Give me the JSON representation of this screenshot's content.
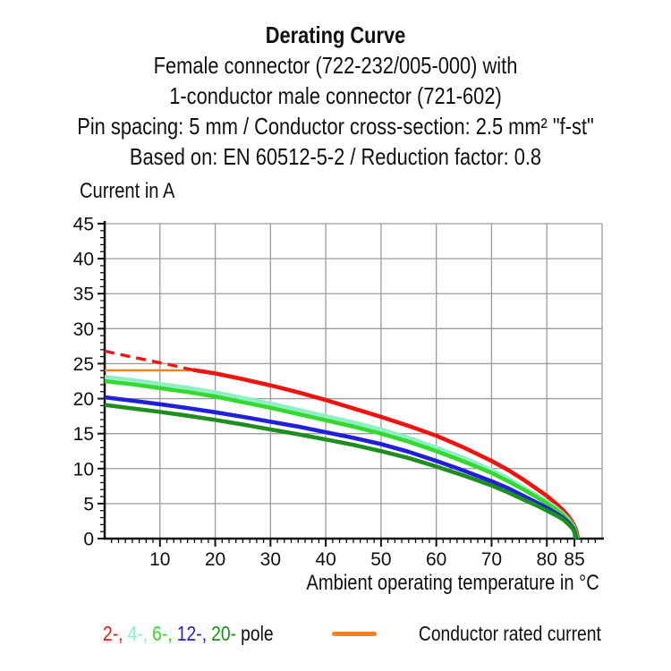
{
  "header": {
    "line1": "Derating Curve",
    "line2": "Female connector (722-232/005-000) with",
    "line3": "1-conductor male connector (721-602)",
    "line4": "Pin spacing: 5 mm / Conductor cross-section: 2.5 mm² \"f-st\"",
    "line5": "Based on: EN 60512-5-2 / Reduction factor: 0.8"
  },
  "chart": {
    "y_axis_title": "Current in A",
    "x_axis_title": "Ambient operating temperature in °C"
  },
  "legend": {
    "pole_items": [
      {
        "label": "2-,",
        "color": "#F01410"
      },
      {
        "label": "4-,",
        "color": "#8CF0C4"
      },
      {
        "label": "6-,",
        "color": "#35D92E"
      },
      {
        "label": "12-,",
        "color": "#2020DC"
      },
      {
        "label": "20-",
        "color": "#1E8E1E"
      }
    ],
    "pole_suffix": "pole",
    "rated_label": "Conductor rated current",
    "rated_color": "#F5821F"
  },
  "style": {
    "background": "#FFFFFF",
    "grid_color": "#9C9C9C",
    "axis_color": "#111111",
    "text_color": "#111111"
  },
  "chart_data": {
    "type": "line",
    "title": "Derating Curve",
    "xlabel": "Ambient operating temperature in °C",
    "ylabel": "Current in A",
    "xlim": [
      0,
      90
    ],
    "ylim": [
      0,
      45
    ],
    "x_major_ticks": [
      10,
      20,
      30,
      40,
      50,
      60,
      70,
      80,
      85
    ],
    "x_minor_step": 1.25,
    "y_major_ticks": [
      0,
      5,
      10,
      15,
      20,
      25,
      30,
      35,
      40,
      45
    ],
    "y_minor_step": 1,
    "grid": true,
    "legend_position": "bottom",
    "series": [
      {
        "id": "rated-current",
        "name": "Conductor rated current",
        "color": "#F5821F",
        "width": 2.4,
        "dash": null,
        "points": [
          [
            0,
            24.05
          ],
          [
            16.2,
            24.05
          ]
        ]
      },
      {
        "id": "pole-2-dashed",
        "name": "2-pole (dashed extension)",
        "color": "#F01410",
        "width": 3.4,
        "dash": "11 7",
        "points": [
          [
            0,
            26.8
          ],
          [
            4,
            26.1
          ],
          [
            8,
            25.45
          ],
          [
            12,
            24.8
          ],
          [
            16,
            24.1
          ]
        ]
      },
      {
        "id": "pole-2",
        "name": "2-pole",
        "color": "#F01410",
        "width": 4.6,
        "dash": null,
        "points": [
          [
            16,
            24.1
          ],
          [
            20,
            23.6
          ],
          [
            25,
            22.8
          ],
          [
            30,
            21.9
          ],
          [
            35,
            20.9
          ],
          [
            40,
            19.8
          ],
          [
            45,
            18.6
          ],
          [
            50,
            17.4
          ],
          [
            55,
            16.1
          ],
          [
            60,
            14.7
          ],
          [
            65,
            13.0
          ],
          [
            70,
            11.1
          ],
          [
            73,
            9.8
          ],
          [
            76,
            8.3
          ],
          [
            78,
            7.2
          ],
          [
            80,
            6.1
          ],
          [
            81.5,
            5.1
          ],
          [
            83,
            4.0
          ],
          [
            84,
            3.1
          ],
          [
            84.8,
            2.1
          ],
          [
            85.3,
            1.2
          ],
          [
            85.65,
            0
          ]
        ]
      },
      {
        "id": "pole-4",
        "name": "4-pole",
        "color": "#8CF0C4",
        "width": 4.6,
        "dash": null,
        "points": [
          [
            0,
            23.1
          ],
          [
            5,
            22.65
          ],
          [
            10,
            22.1
          ],
          [
            15,
            21.55
          ],
          [
            20,
            20.9
          ],
          [
            25,
            20.1
          ],
          [
            30,
            19.3
          ],
          [
            35,
            18.4
          ],
          [
            40,
            17.5
          ],
          [
            45,
            16.6
          ],
          [
            50,
            15.6
          ],
          [
            55,
            14.4
          ],
          [
            60,
            13.0
          ],
          [
            65,
            11.5
          ],
          [
            70,
            9.8
          ],
          [
            73,
            8.6
          ],
          [
            76,
            7.2
          ],
          [
            78,
            6.3
          ],
          [
            80,
            5.3
          ],
          [
            81.5,
            4.5
          ],
          [
            83,
            3.5
          ],
          [
            84,
            2.7
          ],
          [
            84.8,
            1.8
          ],
          [
            85.2,
            1.0
          ],
          [
            85.5,
            0
          ]
        ]
      },
      {
        "id": "pole-6",
        "name": "6-pole",
        "color": "#35D92E",
        "width": 4.6,
        "dash": null,
        "points": [
          [
            0,
            22.5
          ],
          [
            5,
            22.05
          ],
          [
            10,
            21.5
          ],
          [
            15,
            20.95
          ],
          [
            20,
            20.3
          ],
          [
            25,
            19.5
          ],
          [
            30,
            18.7
          ],
          [
            35,
            17.8
          ],
          [
            40,
            16.9
          ],
          [
            45,
            16.0
          ],
          [
            50,
            15.0
          ],
          [
            55,
            13.85
          ],
          [
            60,
            12.5
          ],
          [
            65,
            11.0
          ],
          [
            70,
            9.4
          ],
          [
            73,
            8.2
          ],
          [
            76,
            6.9
          ],
          [
            78,
            6.0
          ],
          [
            80,
            5.05
          ],
          [
            81.5,
            4.25
          ],
          [
            83,
            3.3
          ],
          [
            84,
            2.5
          ],
          [
            84.8,
            1.65
          ],
          [
            85.2,
            0.9
          ],
          [
            85.55,
            0
          ]
        ]
      },
      {
        "id": "pole-12",
        "name": "12-pole",
        "color": "#2020DC",
        "width": 4.6,
        "dash": null,
        "points": [
          [
            0,
            20.2
          ],
          [
            5,
            19.7
          ],
          [
            10,
            19.2
          ],
          [
            15,
            18.65
          ],
          [
            20,
            18.05
          ],
          [
            25,
            17.4
          ],
          [
            30,
            16.7
          ],
          [
            35,
            16.0
          ],
          [
            40,
            15.2
          ],
          [
            45,
            14.4
          ],
          [
            50,
            13.5
          ],
          [
            55,
            12.4
          ],
          [
            60,
            11.1
          ],
          [
            65,
            9.7
          ],
          [
            70,
            8.2
          ],
          [
            73,
            7.2
          ],
          [
            76,
            6.0
          ],
          [
            78,
            5.2
          ],
          [
            80,
            4.4
          ],
          [
            81.5,
            3.7
          ],
          [
            83,
            2.9
          ],
          [
            84,
            2.2
          ],
          [
            84.8,
            1.4
          ],
          [
            85.1,
            0.8
          ],
          [
            85.3,
            0
          ]
        ]
      },
      {
        "id": "pole-20",
        "name": "20-pole",
        "color": "#1E8E1E",
        "width": 4.6,
        "dash": null,
        "points": [
          [
            0,
            19.1
          ],
          [
            5,
            18.6
          ],
          [
            10,
            18.1
          ],
          [
            15,
            17.55
          ],
          [
            20,
            16.95
          ],
          [
            25,
            16.3
          ],
          [
            30,
            15.6
          ],
          [
            35,
            14.9
          ],
          [
            40,
            14.15
          ],
          [
            45,
            13.4
          ],
          [
            50,
            12.5
          ],
          [
            55,
            11.5
          ],
          [
            60,
            10.3
          ],
          [
            65,
            9.0
          ],
          [
            70,
            7.6
          ],
          [
            73,
            6.6
          ],
          [
            76,
            5.5
          ],
          [
            78,
            4.8
          ],
          [
            80,
            4.0
          ],
          [
            81.5,
            3.4
          ],
          [
            83,
            2.7
          ],
          [
            84,
            2.0
          ],
          [
            84.8,
            1.3
          ],
          [
            85.05,
            0.7
          ],
          [
            85.2,
            0
          ]
        ]
      }
    ]
  }
}
